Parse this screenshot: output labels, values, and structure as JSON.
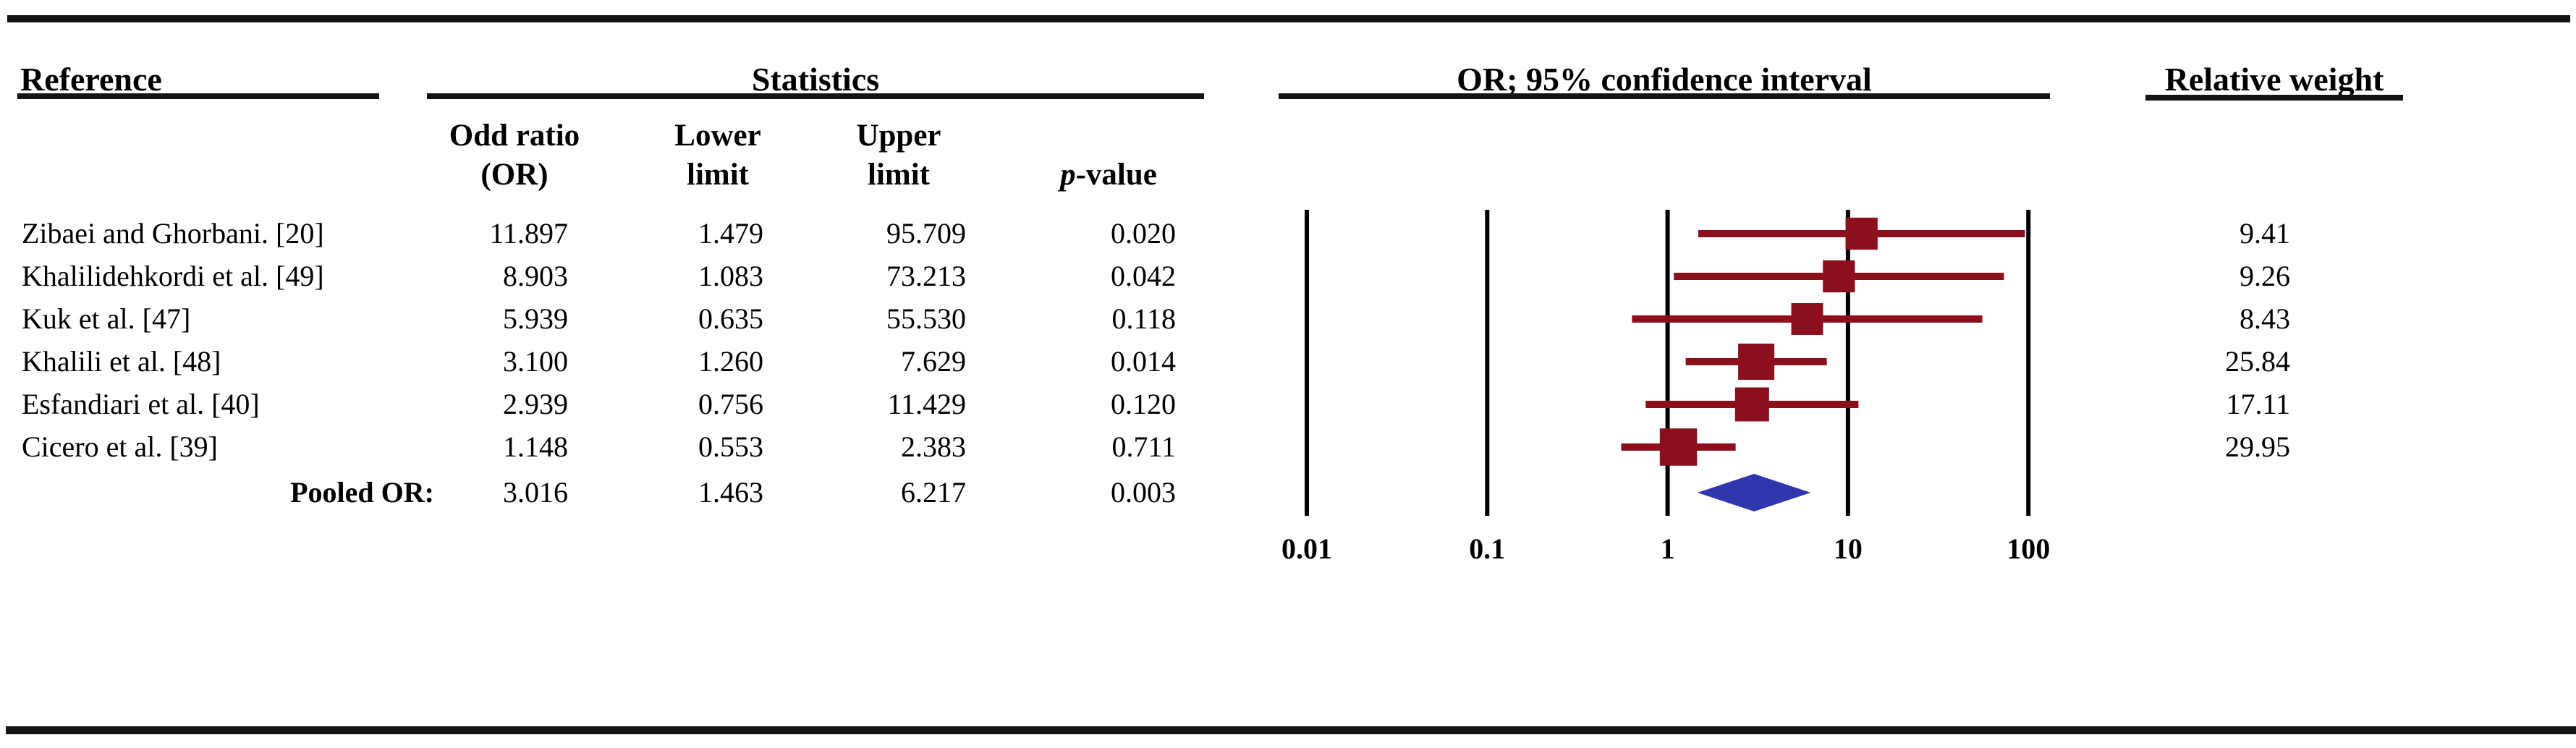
{
  "header": {
    "reference": "Reference",
    "statistics": "Statistics",
    "ci": "OR; 95% confidence interval",
    "relative_weight": "Relative weight",
    "col_or_line1": "Odd ratio",
    "col_or_line2": "(OR)",
    "col_lower_line1": "Lower",
    "col_lower_line2": "limit",
    "col_upper_line1": "Upper",
    "col_upper_line2": "limit",
    "p_italic": "p",
    "p_suffix": "-value"
  },
  "rows": [
    {
      "label": "Zibaei and Ghorbani. [20]",
      "or": "11.897",
      "lower": "1.479",
      "upper": "95.709",
      "p": "0.020",
      "weight": "9.41"
    },
    {
      "label": "Khalilidehkordi et al. [49]",
      "or": "8.903",
      "lower": "1.083",
      "upper": "73.213",
      "p": "0.042",
      "weight": "9.26"
    },
    {
      "label": "Kuk et al. [47]",
      "or": "5.939",
      "lower": "0.635",
      "upper": "55.530",
      "p": "0.118",
      "weight": "8.43"
    },
    {
      "label": "Khalili et al. [48]",
      "or": "3.100",
      "lower": "1.260",
      "upper": "7.629",
      "p": "0.014",
      "weight": "25.84"
    },
    {
      "label": "Esfandiari et al. [40]",
      "or": "2.939",
      "lower": "0.756",
      "upper": "11.429",
      "p": "0.120",
      "weight": "17.11"
    },
    {
      "label": "Cicero et al. [39]",
      "or": "1.148",
      "lower": "0.553",
      "upper": "2.383",
      "p": "0.711",
      "weight": "29.95"
    }
  ],
  "pooled": {
    "label": "Pooled OR:",
    "or": "3.016",
    "lower": "1.463",
    "upper": "6.217",
    "p": "0.003"
  },
  "chart_data": {
    "type": "scatter",
    "chart_kind": "forest_plot",
    "title": "OR; 95% confidence interval",
    "x_scale": "log10",
    "x_range": [
      0.01,
      100
    ],
    "x_ticks": [
      0.01,
      0.1,
      1,
      10,
      100
    ],
    "x_tick_labels": [
      "0.01",
      "0.1",
      "1",
      "10",
      "100"
    ],
    "grid": "vertical-lines-at-ticks",
    "studies": [
      {
        "label": "Zibaei and Ghorbani. [20]",
        "or": 11.897,
        "lower": 1.479,
        "upper": 95.709,
        "p": 0.02,
        "weight": 9.41
      },
      {
        "label": "Khalilidehkordi et al. [49]",
        "or": 8.903,
        "lower": 1.083,
        "upper": 73.213,
        "p": 0.042,
        "weight": 9.26
      },
      {
        "label": "Kuk et al. [47]",
        "or": 5.939,
        "lower": 0.635,
        "upper": 55.53,
        "p": 0.118,
        "weight": 8.43
      },
      {
        "label": "Khalili et al. [48]",
        "or": 3.1,
        "lower": 1.26,
        "upper": 7.629,
        "p": 0.014,
        "weight": 25.84
      },
      {
        "label": "Esfandiari et al. [40]",
        "or": 2.939,
        "lower": 0.756,
        "upper": 11.429,
        "p": 0.12,
        "weight": 17.11
      },
      {
        "label": "Cicero et al. [39]",
        "or": 1.148,
        "lower": 0.553,
        "upper": 2.383,
        "p": 0.711,
        "weight": 29.95
      }
    ],
    "pooled": {
      "label": "Pooled OR:",
      "or": 3.016,
      "lower": 1.463,
      "upper": 6.217,
      "p": 0.003
    },
    "marker_color": "#8C0F1E",
    "diamond_color": "#3036AE",
    "axis_color": "#000000"
  }
}
